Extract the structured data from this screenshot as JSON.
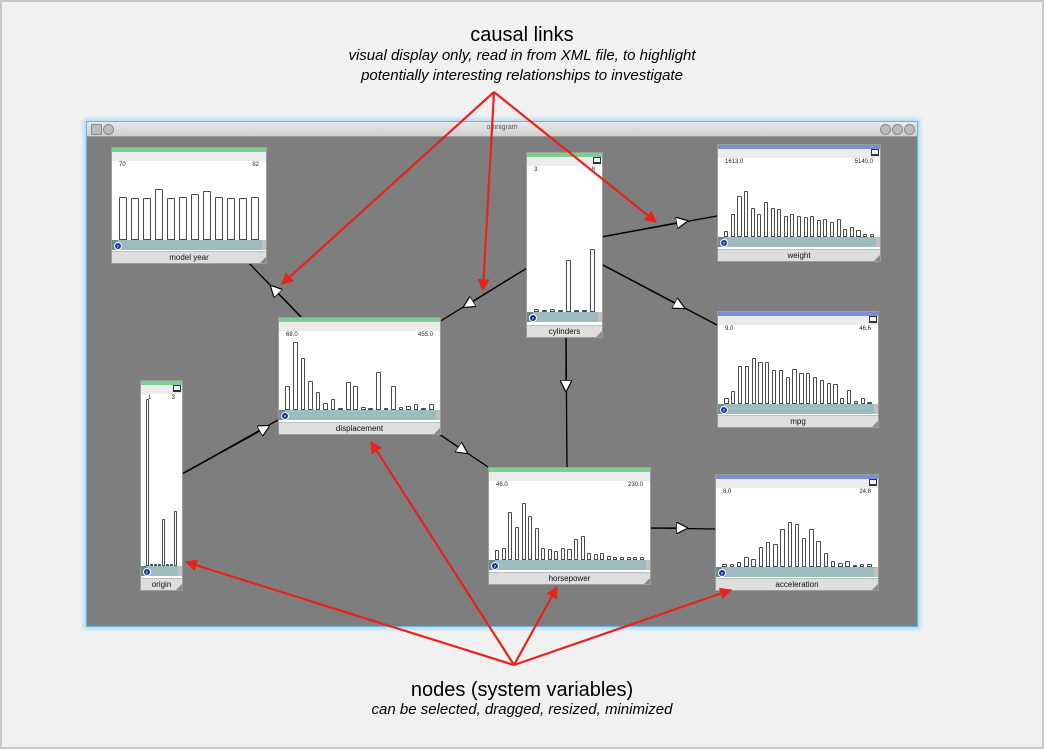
{
  "annotations": {
    "links_title": "causal links",
    "links_sub1": "visual display only, read in from XML file, to highlight",
    "links_sub2": "potentially interesting relationships to investigate",
    "nodes_title": "nodes (system variables)",
    "nodes_sub": "can be selected, dragged, resized, minimized"
  },
  "window": {
    "title": "omnigram"
  },
  "colors": {
    "accent_green": "#7dcf8f",
    "accent_blue": "#7c8fd6",
    "arrow_red": "#e8231a",
    "canvas_gray": "#7e7e7e",
    "slider_teal": "#9cbcbf"
  },
  "nodes": {
    "model_year": {
      "label": "model year",
      "min": "70",
      "max": "82"
    },
    "cylinders": {
      "label": "cylinders",
      "min": "3",
      "max": "8"
    },
    "weight": {
      "label": "weight",
      "min": "1613.0",
      "max": "5140.0"
    },
    "mpg": {
      "label": "mpg",
      "min": "9.0",
      "max": "46.6"
    },
    "displacement": {
      "label": "displacement",
      "min": "68.0",
      "max": "455.0"
    },
    "origin": {
      "label": "origin",
      "min": "1",
      "max": "3"
    },
    "horsepower": {
      "label": "horsepower",
      "min": "46.0",
      "max": "230.0"
    },
    "acceleration": {
      "label": "acceleration",
      "min": "8.0",
      "max": "24.8"
    }
  },
  "histograms": {
    "model_year": [
      0.62,
      0.6,
      0.6,
      0.73,
      0.6,
      0.62,
      0.66,
      0.7,
      0.62,
      0.6,
      0.6,
      0.62
    ],
    "cylinders": [
      0.02,
      0.0,
      0.02,
      0.0,
      0.37,
      0.0,
      0.0,
      0.45
    ],
    "weight": [
      0.08,
      0.33,
      0.58,
      0.66,
      0.42,
      0.33,
      0.5,
      0.42,
      0.4,
      0.3,
      0.33,
      0.3,
      0.28,
      0.3,
      0.24,
      0.26,
      0.22,
      0.26,
      0.12,
      0.14,
      0.1,
      0.04,
      0.05
    ],
    "mpg": [
      0.08,
      0.18,
      0.55,
      0.55,
      0.66,
      0.6,
      0.6,
      0.48,
      0.48,
      0.38,
      0.5,
      0.44,
      0.44,
      0.38,
      0.34,
      0.3,
      0.28,
      0.08,
      0.2,
      0.04,
      0.08,
      0.02
    ],
    "displacement": [
      0.35,
      0.97,
      0.74,
      0.41,
      0.26,
      0.1,
      0.16,
      0.01,
      0.4,
      0.35,
      0.04,
      0.01,
      0.54,
      0.03,
      0.34,
      0.05,
      0.06,
      0.08,
      0.02,
      0.09
    ],
    "origin": [
      1.0,
      0.0,
      0.0,
      0.0,
      0.28,
      0.0,
      0.0,
      0.33
    ],
    "horsepower": [
      0.14,
      0.17,
      0.68,
      0.47,
      0.82,
      0.63,
      0.46,
      0.17,
      0.16,
      0.13,
      0.17,
      0.16,
      0.3,
      0.35,
      0.1,
      0.09,
      0.1,
      0.06,
      0.05,
      0.05,
      0.05,
      0.04,
      0.05
    ],
    "acceleration": [
      0.04,
      0.04,
      0.07,
      0.14,
      0.12,
      0.29,
      0.36,
      0.33,
      0.54,
      0.64,
      0.61,
      0.41,
      0.54,
      0.37,
      0.2,
      0.09,
      0.06,
      0.09,
      0.01,
      0.04,
      0.05
    ]
  }
}
